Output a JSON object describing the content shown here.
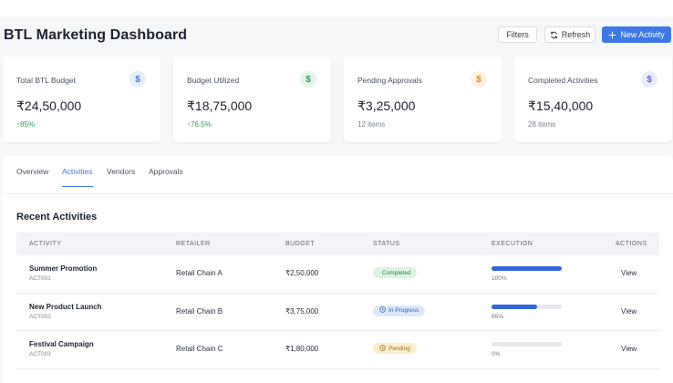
{
  "header": {
    "title": "BTL Marketing Dashboard",
    "filters_label": "Filters",
    "refresh_label": "Refresh",
    "new_activity_label": "New Activity"
  },
  "stats": [
    {
      "label": "Total BTL Budget",
      "value": "₹24,50,000",
      "sub": "85%",
      "trend": "up",
      "icon": "dollar-icon",
      "icon_color": "#3e78e6",
      "icon_bg": "#e8effc"
    },
    {
      "label": "Budget Utilized",
      "value": "₹18,75,000",
      "sub": "76.5%",
      "trend": "up",
      "icon": "dollar-icon",
      "icon_color": "#2f9a52",
      "icon_bg": "#e6f5eb"
    },
    {
      "label": "Pending Approvals",
      "value": "₹3,25,000",
      "sub": "12 items",
      "trend": "none",
      "icon": "dollar-icon",
      "icon_color": "#e08a1e",
      "icon_bg": "#fdf1e1"
    },
    {
      "label": "Completed Activities",
      "value": "₹15,40,000",
      "sub": "28 items",
      "trend": "none",
      "icon": "dollar-icon",
      "icon_color": "#5b5fd6",
      "icon_bg": "#ecebfb"
    }
  ],
  "tabs": [
    {
      "label": "Overview",
      "active": false
    },
    {
      "label": "Activities",
      "active": true
    },
    {
      "label": "Vendors",
      "active": false
    },
    {
      "label": "Approvals",
      "active": false
    }
  ],
  "section_title": "Recent Activities",
  "table": {
    "columns": [
      "ACTIVITY",
      "RETAILER",
      "BUDGET",
      "STATUS",
      "EXECUTION",
      "ACTIONS"
    ],
    "rows": [
      {
        "name": "Summer Promotion",
        "id": "ACT001",
        "retailer": "Retail Chain A",
        "budget": "₹2,50,000",
        "status": "Completed",
        "status_kind": "completed",
        "execution": 100,
        "execution_label": "100%",
        "action": "View"
      },
      {
        "name": "New Product Launch",
        "id": "ACT002",
        "retailer": "Retail Chain B",
        "budget": "₹3,75,000",
        "status": "In Progress",
        "status_kind": "progress",
        "execution": 65,
        "execution_label": "65%",
        "action": "View"
      },
      {
        "name": "Festival Campaign",
        "id": "ACT003",
        "retailer": "Retail Chain C",
        "budget": "₹1,80,000",
        "status": "Pending",
        "status_kind": "pending",
        "execution": 0,
        "execution_label": "0%",
        "action": "View"
      }
    ]
  },
  "status_styles": {
    "completed": {
      "bg": "#dcf3e3",
      "fg": "#23864a"
    },
    "progress": {
      "bg": "#dde8fb",
      "fg": "#2f5fc4"
    },
    "pending": {
      "bg": "#fcefcf",
      "fg": "#a26a0b"
    }
  }
}
